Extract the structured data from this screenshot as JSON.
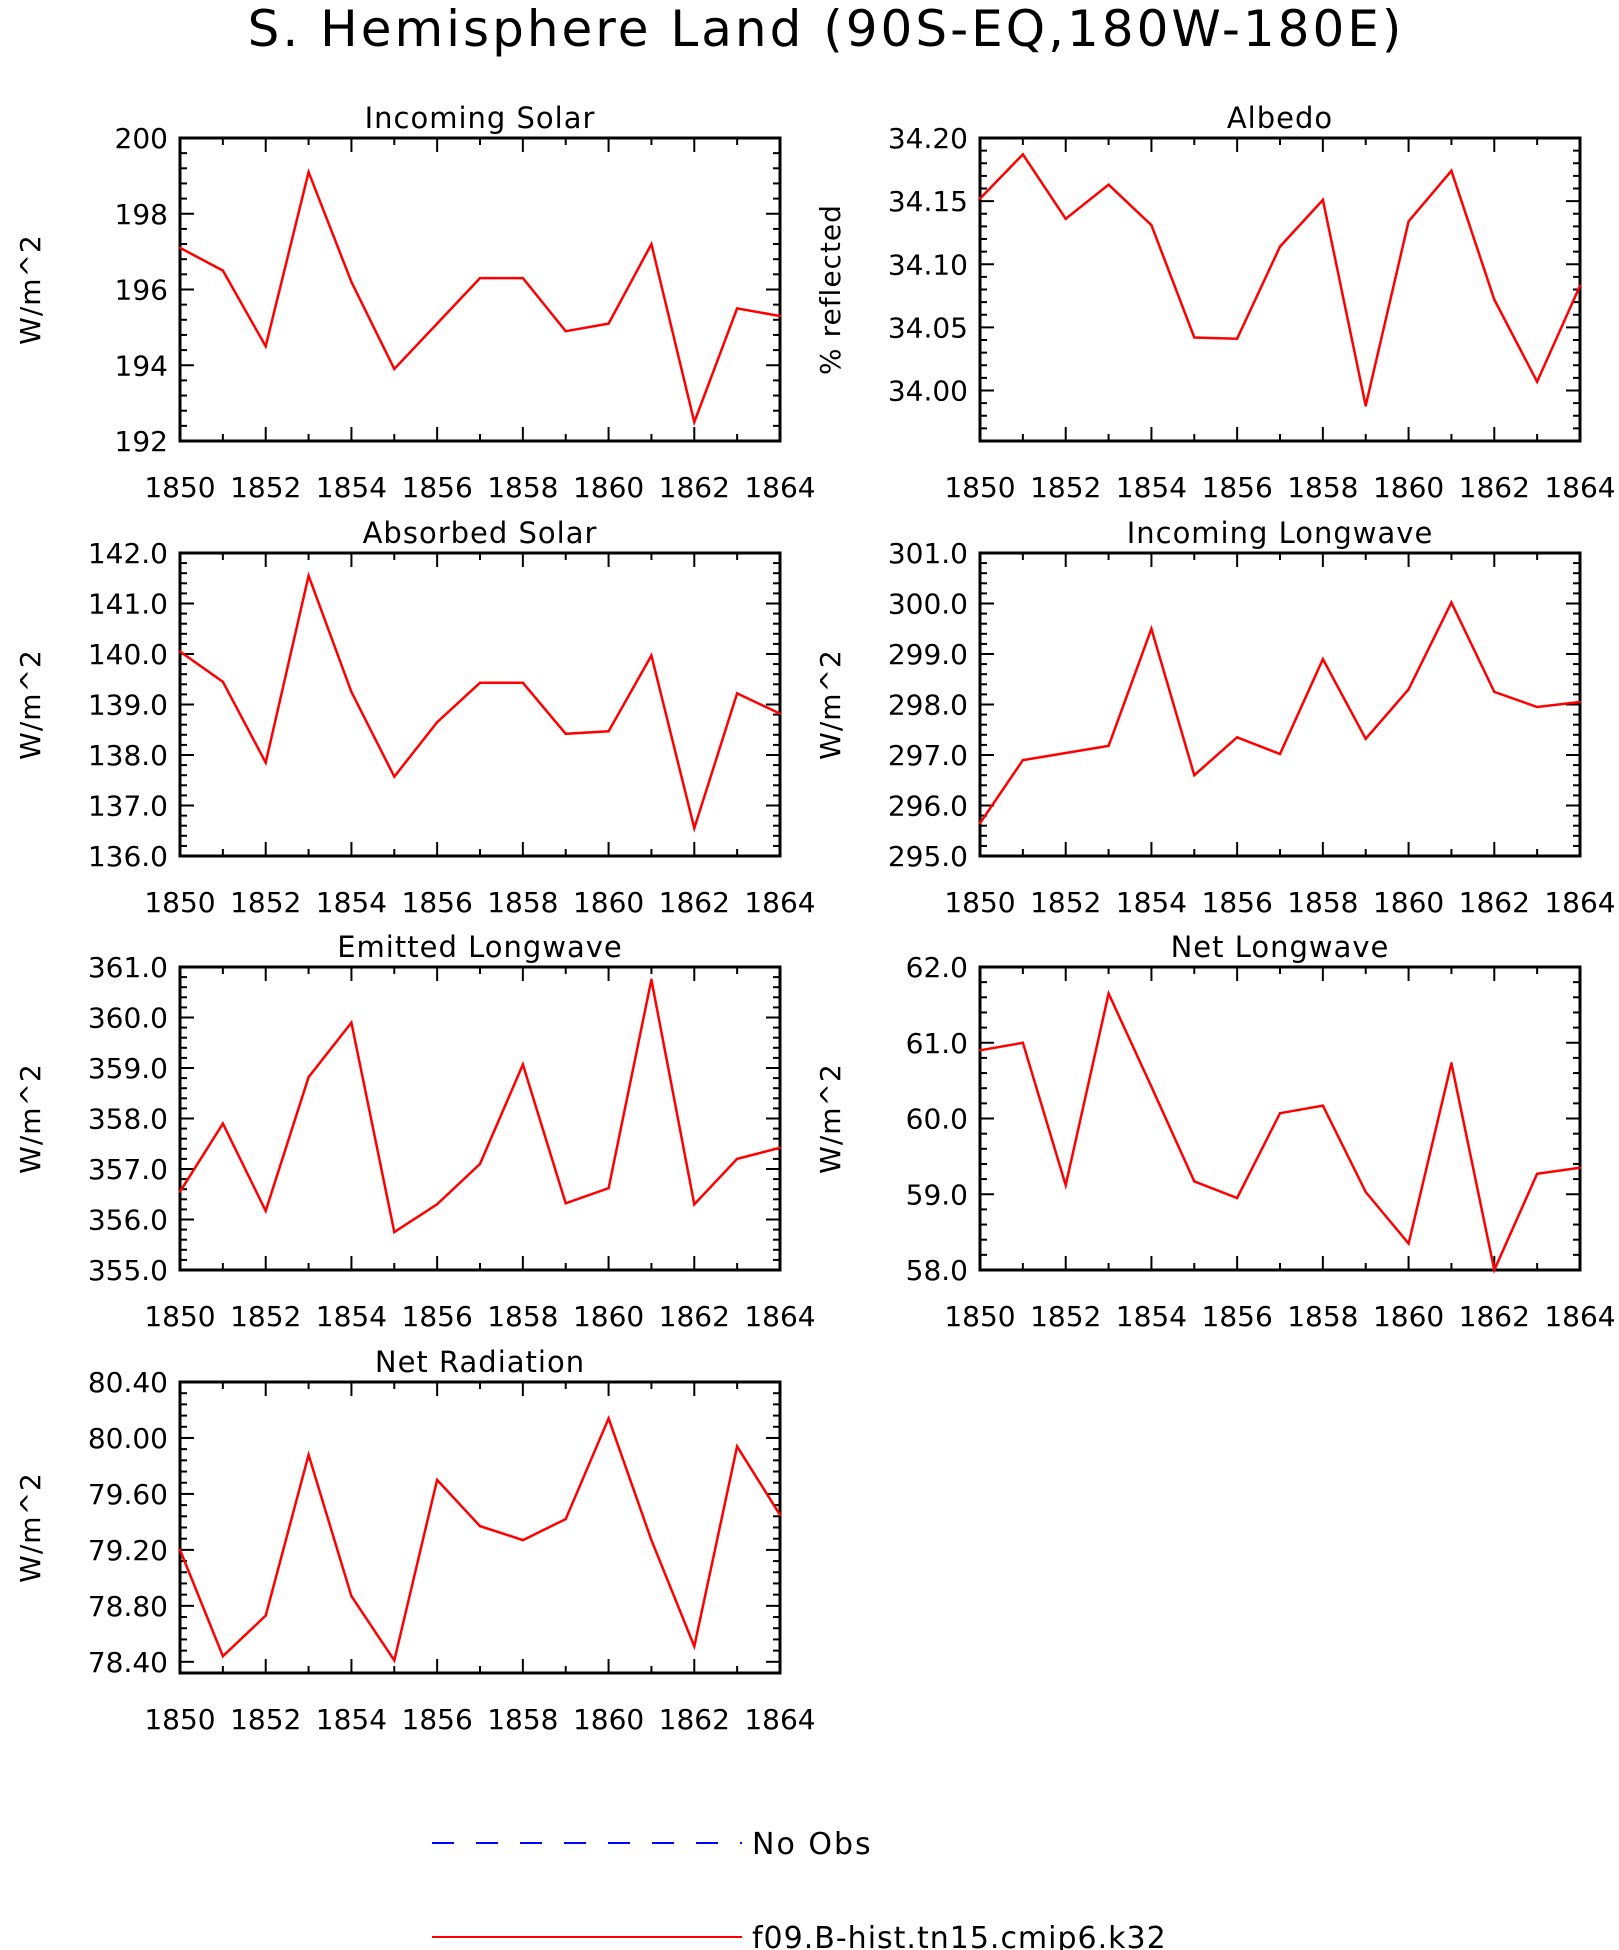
{
  "page_title": "S. Hemisphere Land (90S-EQ,180W-180E)",
  "legend": {
    "items": [
      {
        "label": "No Obs",
        "color": "#0000ff",
        "style": "dashed"
      },
      {
        "label": "f09.B-hist.tn15.cmip6.k32",
        "color": "#ff0000",
        "style": "solid"
      }
    ]
  },
  "colors": {
    "series": "#ff0000",
    "axes": "#000000",
    "obs": "#0000ff"
  },
  "chart_data": [
    {
      "type": "line",
      "title": "Incoming Solar",
      "ylabel": "W/m^2",
      "x": [
        1850,
        1851,
        1852,
        1853,
        1854,
        1855,
        1856,
        1857,
        1858,
        1859,
        1860,
        1861,
        1862,
        1863,
        1864
      ],
      "xlim": [
        1850,
        1864
      ],
      "xticks": [
        1850,
        1852,
        1854,
        1856,
        1858,
        1860,
        1862,
        1864
      ],
      "ylim": [
        192,
        200
      ],
      "yticks": [
        "192",
        "194",
        "196",
        "198",
        "200"
      ],
      "series": [
        {
          "values": [
            197.1,
            196.5,
            194.5,
            199.1,
            196.2,
            193.9,
            195.1,
            196.3,
            196.3,
            194.9,
            195.1,
            197.2,
            192.5,
            195.5,
            195.3
          ]
        }
      ]
    },
    {
      "type": "line",
      "title": "Albedo",
      "ylabel": "% reflected",
      "x": [
        1850,
        1851,
        1852,
        1853,
        1854,
        1855,
        1856,
        1857,
        1858,
        1859,
        1860,
        1861,
        1862,
        1863,
        1864
      ],
      "xlim": [
        1850,
        1864
      ],
      "xticks": [
        1850,
        1852,
        1854,
        1856,
        1858,
        1860,
        1862,
        1864
      ],
      "ylim": [
        33.96,
        34.2
      ],
      "yticks": [
        "34.00",
        "34.05",
        "34.10",
        "34.15",
        "34.20"
      ],
      "series": [
        {
          "values": [
            34.152,
            34.187,
            34.136,
            34.163,
            34.131,
            34.042,
            34.041,
            34.114,
            34.151,
            33.988,
            34.134,
            34.174,
            34.072,
            34.007,
            34.083
          ]
        }
      ]
    },
    {
      "type": "line",
      "title": "Absorbed Solar",
      "ylabel": "W/m^2",
      "x": [
        1850,
        1851,
        1852,
        1853,
        1854,
        1855,
        1856,
        1857,
        1858,
        1859,
        1860,
        1861,
        1862,
        1863,
        1864
      ],
      "xlim": [
        1850,
        1864
      ],
      "xticks": [
        1850,
        1852,
        1854,
        1856,
        1858,
        1860,
        1862,
        1864
      ],
      "ylim": [
        136.0,
        142.0
      ],
      "yticks": [
        "136.0",
        "137.0",
        "138.0",
        "139.0",
        "140.0",
        "141.0",
        "142.0"
      ],
      "series": [
        {
          "values": [
            140.05,
            139.45,
            137.85,
            141.55,
            139.25,
            137.57,
            138.65,
            139.43,
            139.43,
            138.42,
            138.47,
            139.97,
            136.55,
            139.22,
            138.82
          ]
        }
      ]
    },
    {
      "type": "line",
      "title": "Incoming Longwave",
      "ylabel": "W/m^2",
      "x": [
        1850,
        1851,
        1852,
        1853,
        1854,
        1855,
        1856,
        1857,
        1858,
        1859,
        1860,
        1861,
        1862,
        1863,
        1864
      ],
      "xlim": [
        1850,
        1864
      ],
      "xticks": [
        1850,
        1852,
        1854,
        1856,
        1858,
        1860,
        1862,
        1864
      ],
      "ylim": [
        295.0,
        301.0
      ],
      "yticks": [
        "295.0",
        "296.0",
        "297.0",
        "298.0",
        "299.0",
        "300.0",
        "301.0"
      ],
      "series": [
        {
          "values": [
            295.65,
            296.9,
            297.04,
            297.18,
            299.5,
            296.6,
            297.35,
            297.02,
            298.9,
            297.32,
            298.3,
            300.02,
            298.25,
            297.95,
            298.05
          ]
        }
      ]
    },
    {
      "type": "line",
      "title": "Emitted Longwave",
      "ylabel": "W/m^2",
      "x": [
        1850,
        1851,
        1852,
        1853,
        1854,
        1855,
        1856,
        1857,
        1858,
        1859,
        1860,
        1861,
        1862,
        1863,
        1864
      ],
      "xlim": [
        1850,
        1864
      ],
      "xticks": [
        1850,
        1852,
        1854,
        1856,
        1858,
        1860,
        1862,
        1864
      ],
      "ylim": [
        355.0,
        361.0
      ],
      "yticks": [
        "355.0",
        "356.0",
        "357.0",
        "358.0",
        "359.0",
        "360.0",
        "361.0"
      ],
      "series": [
        {
          "values": [
            356.55,
            357.9,
            356.17,
            358.82,
            359.9,
            355.75,
            356.3,
            357.1,
            359.07,
            356.32,
            356.62,
            360.75,
            356.3,
            357.2,
            357.42
          ]
        }
      ]
    },
    {
      "type": "line",
      "title": "Net Longwave",
      "ylabel": "W/m^2",
      "x": [
        1850,
        1851,
        1852,
        1853,
        1854,
        1855,
        1856,
        1857,
        1858,
        1859,
        1860,
        1861,
        1862,
        1863,
        1864
      ],
      "xlim": [
        1850,
        1864
      ],
      "xticks": [
        1850,
        1852,
        1854,
        1856,
        1858,
        1860,
        1862,
        1864
      ],
      "ylim": [
        58.0,
        62.0
      ],
      "yticks": [
        "58.0",
        "59.0",
        "60.0",
        "61.0",
        "62.0"
      ],
      "series": [
        {
          "values": [
            60.9,
            61.0,
            59.12,
            61.65,
            60.42,
            59.17,
            58.95,
            60.07,
            60.17,
            59.03,
            58.35,
            60.73,
            58.0,
            59.27,
            59.35
          ]
        }
      ]
    },
    {
      "type": "line",
      "title": "Net Radiation",
      "ylabel": "W/m^2",
      "x": [
        1850,
        1851,
        1852,
        1853,
        1854,
        1855,
        1856,
        1857,
        1858,
        1859,
        1860,
        1861,
        1862,
        1863,
        1864
      ],
      "xlim": [
        1850,
        1864
      ],
      "xticks": [
        1850,
        1852,
        1854,
        1856,
        1858,
        1860,
        1862,
        1864
      ],
      "ylim": [
        78.32,
        80.4
      ],
      "yticks": [
        "78.40",
        "78.80",
        "79.20",
        "79.60",
        "80.00",
        "80.40"
      ],
      "series": [
        {
          "values": [
            79.2,
            78.44,
            78.73,
            79.88,
            78.87,
            78.41,
            79.7,
            79.37,
            79.27,
            79.42,
            80.14,
            79.27,
            78.51,
            79.94,
            79.45
          ]
        }
      ]
    }
  ]
}
